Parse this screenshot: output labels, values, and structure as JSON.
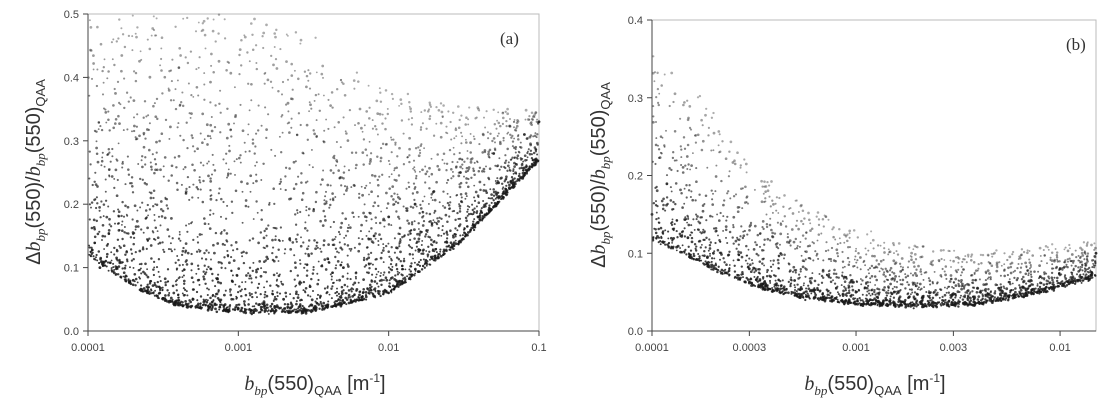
{
  "chart_data": [
    {
      "type": "scatter",
      "panel_label": "(a)",
      "x_scale": "log",
      "xlim": [
        0.0001,
        0.1
      ],
      "ylim": [
        0.0,
        0.5
      ],
      "xticks": [
        "0.0001",
        "0.001",
        "0.01",
        "0.1"
      ],
      "xtick_values": [
        0.0001,
        0.001,
        0.01,
        0.1
      ],
      "yticks": [
        "0.0",
        "0.1",
        "0.2",
        "0.3",
        "0.4",
        "0.5"
      ],
      "ytick_values": [
        0.0,
        0.1,
        0.2,
        0.3,
        0.4,
        0.5
      ],
      "grid": false,
      "point_color": "#1a1a1a",
      "lower_envelope": [
        [
          0.0001,
          0.12
        ],
        [
          0.0002,
          0.07
        ],
        [
          0.0004,
          0.04
        ],
        [
          0.001,
          0.03
        ],
        [
          0.003,
          0.03
        ],
        [
          0.01,
          0.06
        ],
        [
          0.03,
          0.14
        ],
        [
          0.1,
          0.27
        ]
      ],
      "upper_envelope": [
        [
          0.0001,
          0.5
        ],
        [
          0.001,
          0.5
        ],
        [
          0.003,
          0.47
        ],
        [
          0.01,
          0.38
        ],
        [
          0.03,
          0.355
        ],
        [
          0.1,
          0.35
        ]
      ],
      "x": [
        0.00012,
        0.0002,
        0.0003,
        0.0005,
        0.0008,
        0.001,
        0.0015,
        0.002,
        0.003,
        0.005,
        0.008,
        0.01,
        0.015,
        0.02,
        0.03,
        0.05,
        0.08,
        0.1
      ],
      "y": [
        0.1,
        0.08,
        0.06,
        0.05,
        0.04,
        0.035,
        0.04,
        0.05,
        0.07,
        0.1,
        0.15,
        0.18,
        0.2,
        0.22,
        0.25,
        0.28,
        0.31,
        0.33
      ]
    },
    {
      "type": "scatter",
      "panel_label": "(b)",
      "x_scale": "log",
      "xlim": [
        0.0001,
        0.015
      ],
      "ylim": [
        0.0,
        0.4
      ],
      "xticks": [
        "0.0001",
        "0.0003",
        "0.001",
        "0.003",
        "0.01"
      ],
      "xtick_values": [
        0.0001,
        0.0003,
        0.001,
        0.003,
        0.01
      ],
      "yticks": [
        "0.0",
        "0.1",
        "0.2",
        "0.3",
        "0.4"
      ],
      "ytick_values": [
        0.0,
        0.1,
        0.2,
        0.3,
        0.4
      ],
      "grid": false,
      "point_color": "#1a1a1a",
      "lower_envelope": [
        [
          0.0001,
          0.12
        ],
        [
          0.0002,
          0.08
        ],
        [
          0.0003,
          0.06
        ],
        [
          0.0005,
          0.045
        ],
        [
          0.001,
          0.035
        ],
        [
          0.002,
          0.032
        ],
        [
          0.004,
          0.035
        ],
        [
          0.008,
          0.05
        ],
        [
          0.015,
          0.07
        ]
      ],
      "upper_envelope": [
        [
          0.0001,
          0.36
        ],
        [
          0.00015,
          0.32
        ],
        [
          0.0002,
          0.28
        ],
        [
          0.0003,
          0.22
        ],
        [
          0.0005,
          0.17
        ],
        [
          0.001,
          0.13
        ],
        [
          0.002,
          0.11
        ],
        [
          0.004,
          0.1
        ],
        [
          0.008,
          0.11
        ],
        [
          0.015,
          0.115
        ]
      ],
      "x": [
        0.0001,
        0.00015,
        0.0002,
        0.0003,
        0.0005,
        0.0008,
        0.001,
        0.0015,
        0.002,
        0.003,
        0.005,
        0.008,
        0.01,
        0.015
      ],
      "y": [
        0.15,
        0.12,
        0.1,
        0.08,
        0.065,
        0.055,
        0.05,
        0.048,
        0.047,
        0.048,
        0.055,
        0.07,
        0.08,
        0.1
      ]
    }
  ]
}
